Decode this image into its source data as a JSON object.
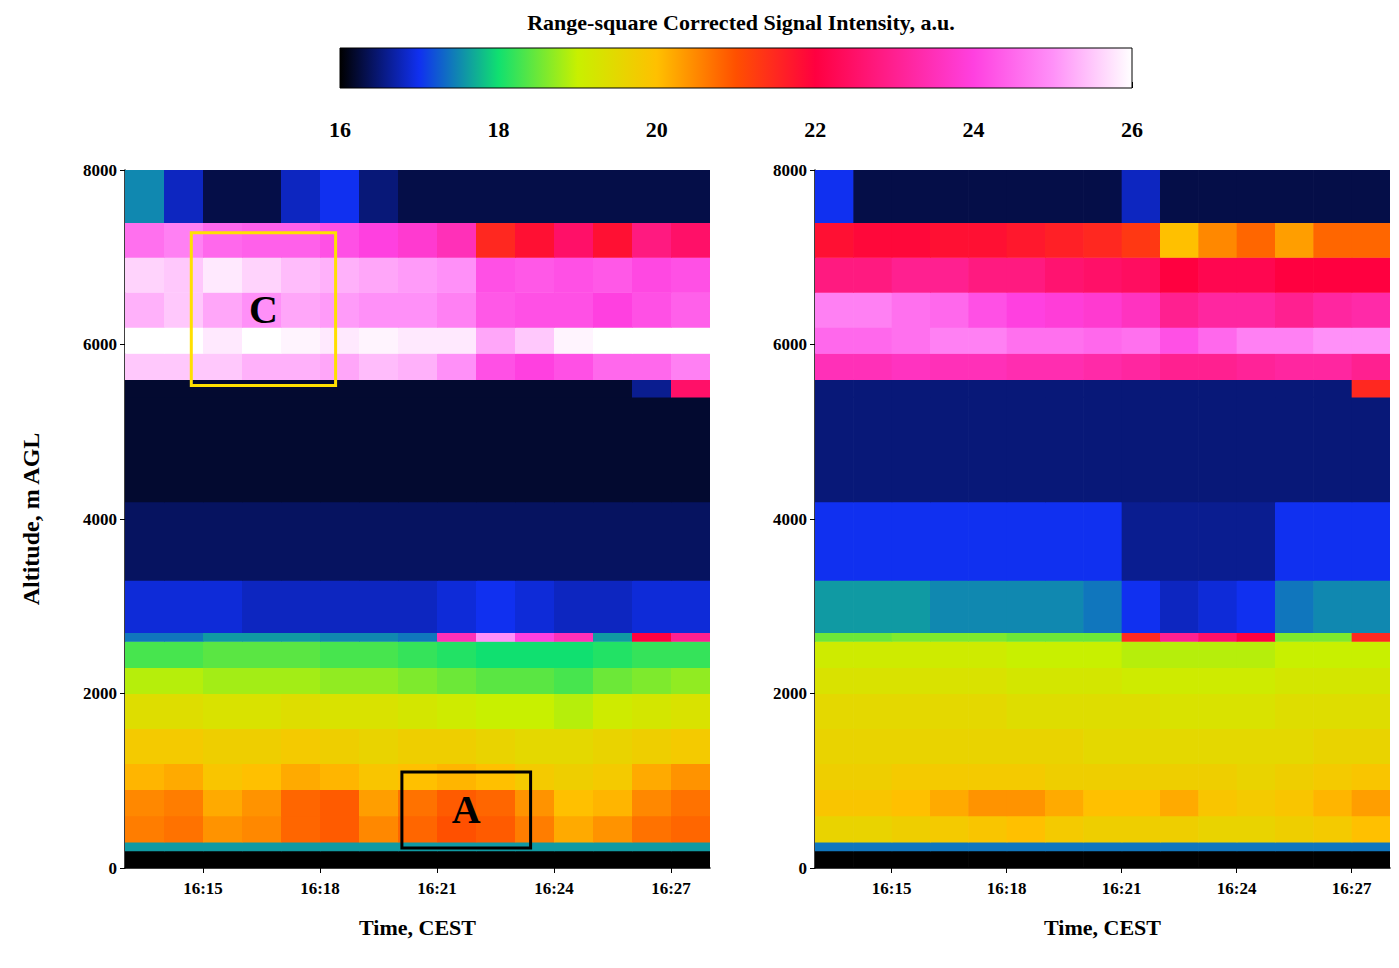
{
  "colorbar": {
    "title": "Range-square Corrected Signal Intensity, a.u.",
    "range": [
      16,
      26
    ],
    "ticks": [
      16,
      18,
      20,
      22,
      24,
      26
    ],
    "colors": [
      "#000000",
      "#1030f0",
      "#10e070",
      "#c8f000",
      "#ffc000",
      "#ff5000",
      "#ff0040",
      "#ff2090",
      "#ff40e0",
      "#ff90f8",
      "#ffffff"
    ]
  },
  "chart_data": [
    {
      "type": "heatmap",
      "x_label": "Time, CEST",
      "y_label": "Altitude, m AGL",
      "xlim": [
        973,
        988
      ],
      "xticks": [
        {
          "value": 975,
          "label": "16:15"
        },
        {
          "value": 978,
          "label": "16:18"
        },
        {
          "value": 981,
          "label": "16:21"
        },
        {
          "value": 984,
          "label": "16:24"
        },
        {
          "value": 987,
          "label": "16:27"
        }
      ],
      "ylim": [
        0,
        8000
      ],
      "yticks": [
        0,
        2000,
        4000,
        6000,
        8000
      ],
      "time_edges": [
        973,
        974,
        975,
        976,
        977,
        978,
        979,
        980,
        981,
        982,
        983,
        984,
        985,
        986,
        987,
        988
      ],
      "altitude_edges": [
        0,
        200,
        300,
        600,
        900,
        1200,
        1600,
        2000,
        2300,
        2600,
        2700,
        3300,
        4200,
        5400,
        5600,
        5900,
        6200,
        6600,
        7000,
        7400,
        8000
      ],
      "cells": [
        [
          16.0,
          16.0,
          16.0,
          16.0,
          16.0,
          16.0,
          16.0,
          16.0,
          16.0,
          16.0,
          16.0,
          16.0,
          16.0,
          16.0,
          16.0
        ],
        [
          17.6,
          17.6,
          17.6,
          17.6,
          17.6,
          17.6,
          17.6,
          17.6,
          17.6,
          17.6,
          17.6,
          17.6,
          17.6,
          17.6,
          17.6
        ],
        [
          20.6,
          20.7,
          20.4,
          20.5,
          20.8,
          20.9,
          20.5,
          20.8,
          21.0,
          20.9,
          20.6,
          20.2,
          20.4,
          20.7,
          20.8
        ],
        [
          20.5,
          20.6,
          20.2,
          20.4,
          20.8,
          20.9,
          20.3,
          20.7,
          20.9,
          20.8,
          20.4,
          20.0,
          20.1,
          20.5,
          20.7
        ],
        [
          20.1,
          20.2,
          19.9,
          20.0,
          20.2,
          20.1,
          19.9,
          20.0,
          20.1,
          20.0,
          19.8,
          19.7,
          19.8,
          20.2,
          20.4
        ],
        [
          19.8,
          19.8,
          19.7,
          19.7,
          19.8,
          19.7,
          19.6,
          19.7,
          19.7,
          19.6,
          19.5,
          19.5,
          19.6,
          19.7,
          19.8
        ],
        [
          19.4,
          19.4,
          19.3,
          19.3,
          19.4,
          19.3,
          19.3,
          19.2,
          19.1,
          19.0,
          19.0,
          18.9,
          19.1,
          19.2,
          19.3
        ],
        [
          18.9,
          18.9,
          18.8,
          18.8,
          18.8,
          18.7,
          18.7,
          18.6,
          18.5,
          18.4,
          18.4,
          18.3,
          18.5,
          18.6,
          18.7
        ],
        [
          18.3,
          18.3,
          18.4,
          18.4,
          18.4,
          18.3,
          18.3,
          18.2,
          18.1,
          18.0,
          18.0,
          18.0,
          18.1,
          18.2,
          18.2
        ],
        [
          17.4,
          17.4,
          17.6,
          17.6,
          17.6,
          17.5,
          17.5,
          17.4,
          23.5,
          25.0,
          24.0,
          23.5,
          17.6,
          22.0,
          23.0
        ],
        [
          16.9,
          16.9,
          16.9,
          16.8,
          16.8,
          16.8,
          16.8,
          16.8,
          16.9,
          17.0,
          16.9,
          16.8,
          16.8,
          16.9,
          16.9
        ],
        [
          16.4,
          16.4,
          16.4,
          16.4,
          16.4,
          16.4,
          16.4,
          16.4,
          16.4,
          16.4,
          16.4,
          16.4,
          16.4,
          16.4,
          16.4
        ],
        [
          16.2,
          16.2,
          16.2,
          16.2,
          16.2,
          16.2,
          16.2,
          16.2,
          16.2,
          16.2,
          16.2,
          16.2,
          16.2,
          16.2,
          16.2
        ],
        [
          16.2,
          16.2,
          16.2,
          16.2,
          16.2,
          16.2,
          16.2,
          16.2,
          16.2,
          16.2,
          16.2,
          16.2,
          16.2,
          16.6,
          22.5
        ],
        [
          25.5,
          25.5,
          25.5,
          25.3,
          25.3,
          25.2,
          25.4,
          25.3,
          25.0,
          24.2,
          24.0,
          24.2,
          24.5,
          24.5,
          24.8
        ],
        [
          26.0,
          26.0,
          25.8,
          26.0,
          25.9,
          25.8,
          25.9,
          25.8,
          25.8,
          25.2,
          25.5,
          25.9,
          26.0,
          26.0,
          26.0
        ],
        [
          25.3,
          25.5,
          25.2,
          25.0,
          25.2,
          25.1,
          25.0,
          25.0,
          24.8,
          24.3,
          24.2,
          24.2,
          24.0,
          24.2,
          24.4
        ],
        [
          25.6,
          25.5,
          25.8,
          25.6,
          25.4,
          25.3,
          25.2,
          25.1,
          25.0,
          24.2,
          24.3,
          24.2,
          24.3,
          24.1,
          24.2
        ],
        [
          24.6,
          24.8,
          24.5,
          24.4,
          24.4,
          24.2,
          24.0,
          23.8,
          23.5,
          21.5,
          21.8,
          22.5,
          21.8,
          22.8,
          22.5
        ],
        [
          17.5,
          16.8,
          16.3,
          16.3,
          16.8,
          17.0,
          16.5,
          16.3,
          16.3,
          16.3,
          16.3,
          16.3,
          16.3,
          16.3,
          16.3
        ]
      ],
      "annotations": [
        {
          "label": "C",
          "x": [
            974.7,
            978.4
          ],
          "y": [
            5530,
            7280
          ],
          "color": "#ffe000"
        },
        {
          "label": "A",
          "x": [
            980.1,
            983.4
          ],
          "y": [
            230,
            1100
          ],
          "color": "#000000"
        }
      ]
    },
    {
      "type": "heatmap",
      "x_label": "Time, CEST",
      "xlim": [
        973,
        988
      ],
      "xticks": [
        {
          "value": 975,
          "label": "16:15"
        },
        {
          "value": 978,
          "label": "16:18"
        },
        {
          "value": 981,
          "label": "16:21"
        },
        {
          "value": 984,
          "label": "16:24"
        },
        {
          "value": 987,
          "label": "16:27"
        }
      ],
      "ylim": [
        0,
        8000
      ],
      "yticks": [
        0,
        2000,
        4000,
        6000,
        8000
      ],
      "time_edges": [
        973,
        974,
        975,
        976,
        977,
        978,
        979,
        980,
        981,
        982,
        983,
        984,
        985,
        986,
        987,
        988
      ],
      "altitude_edges": [
        0,
        200,
        300,
        600,
        900,
        1200,
        1600,
        2000,
        2300,
        2600,
        2700,
        3300,
        4200,
        5400,
        5600,
        5900,
        6200,
        6600,
        7000,
        7400,
        8000
      ],
      "cells": [
        [
          16.0,
          16.0,
          16.0,
          16.0,
          16.0,
          16.0,
          16.0,
          16.0,
          16.0,
          16.0,
          16.0,
          16.0,
          16.0,
          16.0,
          16.0
        ],
        [
          17.4,
          17.4,
          17.4,
          17.4,
          17.4,
          17.4,
          17.4,
          17.4,
          17.4,
          17.4,
          17.4,
          17.4,
          17.4,
          17.4,
          17.4
        ],
        [
          19.6,
          19.6,
          19.7,
          19.8,
          19.9,
          20.0,
          19.8,
          19.7,
          19.7,
          19.7,
          19.6,
          19.6,
          19.7,
          19.8,
          20.0
        ],
        [
          19.9,
          19.9,
          20.0,
          20.2,
          20.4,
          20.4,
          20.2,
          20.0,
          20.0,
          20.2,
          19.9,
          19.8,
          19.9,
          20.1,
          20.3
        ],
        [
          19.7,
          19.7,
          19.8,
          19.8,
          19.8,
          19.8,
          19.7,
          19.7,
          19.7,
          19.7,
          19.7,
          19.6,
          19.7,
          19.8,
          19.9
        ],
        [
          19.6,
          19.6,
          19.6,
          19.6,
          19.6,
          19.6,
          19.6,
          19.5,
          19.5,
          19.5,
          19.5,
          19.5,
          19.5,
          19.6,
          19.6
        ],
        [
          19.5,
          19.5,
          19.5,
          19.5,
          19.5,
          19.4,
          19.4,
          19.4,
          19.4,
          19.3,
          19.3,
          19.3,
          19.4,
          19.4,
          19.4
        ],
        [
          19.3,
          19.3,
          19.3,
          19.3,
          19.3,
          19.2,
          19.2,
          19.2,
          19.1,
          19.1,
          19.1,
          19.1,
          19.2,
          19.2,
          19.2
        ],
        [
          19.1,
          19.1,
          19.1,
          19.1,
          19.1,
          19.0,
          19.0,
          19.0,
          18.9,
          18.9,
          18.9,
          18.9,
          19.0,
          19.0,
          19.0
        ],
        [
          18.5,
          18.5,
          18.6,
          18.6,
          18.6,
          18.5,
          18.5,
          18.5,
          21.5,
          23.0,
          22.5,
          22.0,
          18.6,
          18.6,
          21.5
        ],
        [
          17.6,
          17.6,
          17.6,
          17.5,
          17.5,
          17.5,
          17.5,
          17.4,
          17.0,
          16.8,
          16.9,
          17.0,
          17.4,
          17.5,
          17.5
        ],
        [
          17.0,
          17.0,
          17.0,
          17.0,
          17.0,
          17.0,
          17.0,
          17.0,
          16.6,
          16.6,
          16.6,
          16.6,
          17.0,
          17.0,
          17.0
        ],
        [
          16.5,
          16.5,
          16.5,
          16.5,
          16.5,
          16.5,
          16.5,
          16.5,
          16.5,
          16.5,
          16.5,
          16.5,
          16.5,
          16.5,
          16.5
        ],
        [
          16.5,
          16.5,
          16.5,
          16.5,
          16.5,
          16.5,
          16.5,
          16.5,
          16.5,
          16.5,
          16.5,
          16.5,
          16.5,
          16.5,
          21.5
        ],
        [
          23.5,
          23.5,
          23.6,
          23.5,
          23.5,
          23.4,
          23.4,
          23.3,
          23.2,
          23.0,
          23.0,
          23.1,
          23.2,
          23.2,
          23.0
        ],
        [
          24.5,
          24.5,
          24.6,
          24.8,
          24.8,
          24.6,
          24.6,
          24.5,
          24.6,
          24.2,
          24.5,
          24.8,
          24.8,
          25.0,
          25.0
        ],
        [
          24.8,
          24.8,
          24.6,
          24.5,
          24.2,
          24.0,
          23.9,
          23.8,
          23.6,
          23.0,
          23.2,
          23.2,
          23.0,
          23.2,
          23.3
        ],
        [
          22.8,
          22.8,
          23.0,
          23.0,
          22.8,
          22.8,
          22.6,
          22.5,
          22.4,
          22.0,
          22.2,
          22.2,
          22.0,
          22.0,
          22.0
        ],
        [
          21.8,
          21.9,
          21.9,
          21.8,
          21.8,
          21.7,
          21.6,
          21.5,
          21.3,
          20.0,
          20.5,
          20.8,
          20.3,
          20.8,
          20.8
        ],
        [
          17.0,
          16.3,
          16.3,
          16.3,
          16.3,
          16.3,
          16.3,
          16.3,
          16.8,
          16.3,
          16.3,
          16.3,
          16.3,
          16.3,
          16.3
        ]
      ]
    }
  ]
}
